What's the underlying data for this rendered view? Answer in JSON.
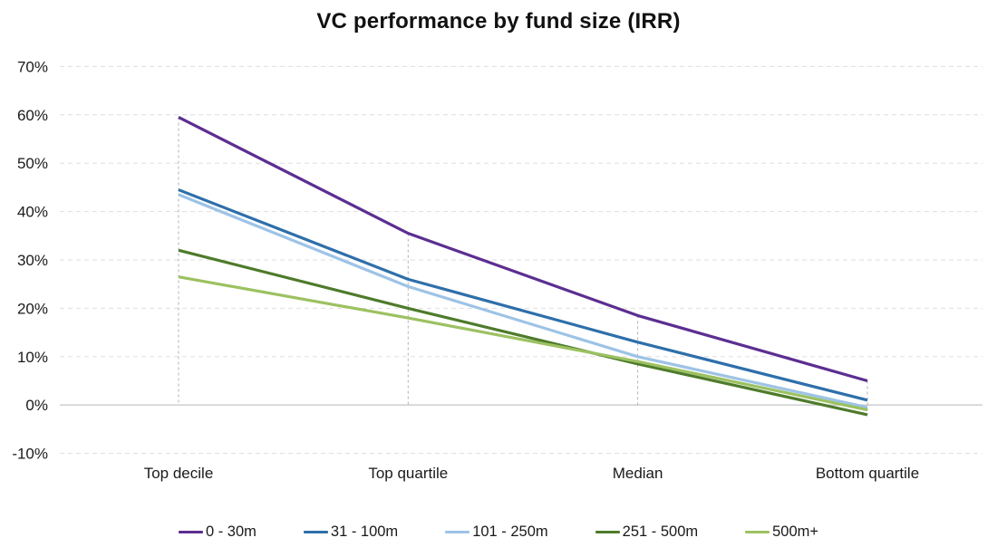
{
  "chart_data": {
    "type": "line",
    "title": "VC performance by fund size (IRR)",
    "categories": [
      "Top decile",
      "Top quartile",
      "Median",
      "Bottom quartile"
    ],
    "series": [
      {
        "name": "0 - 30m",
        "color": "#5C2E91",
        "values": [
          59.5,
          35.5,
          18.5,
          5.0
        ]
      },
      {
        "name": "31 - 100m",
        "color": "#2E6FAA",
        "values": [
          44.5,
          26.0,
          13.0,
          1.0
        ]
      },
      {
        "name": "101 - 250m",
        "color": "#9DC3E6",
        "values": [
          43.5,
          24.5,
          10.0,
          -0.5
        ]
      },
      {
        "name": "251 - 500m",
        "color": "#4E7B2B",
        "values": [
          32.0,
          20.0,
          8.5,
          -2.0
        ]
      },
      {
        "name": "500m+",
        "color": "#9CC161",
        "values": [
          26.5,
          18.0,
          9.0,
          -1.0
        ]
      }
    ],
    "ylim": [
      -10,
      70
    ],
    "ytick_step": 10,
    "ytick_suffix": "%",
    "ytick_labels": [
      "70%",
      "60%",
      "50%",
      "40%",
      "30%",
      "20%",
      "10%",
      "0%",
      "-10%"
    ],
    "grid": "horizontal-dashed",
    "zero_line": "solid",
    "category_guides": "vertical-dashed",
    "legend_position": "bottom",
    "grid_color": "#dedede",
    "zero_line_color": "#d2d2d2",
    "guide_color": "#b3b3b3",
    "text_color": "#1a1a1a"
  }
}
